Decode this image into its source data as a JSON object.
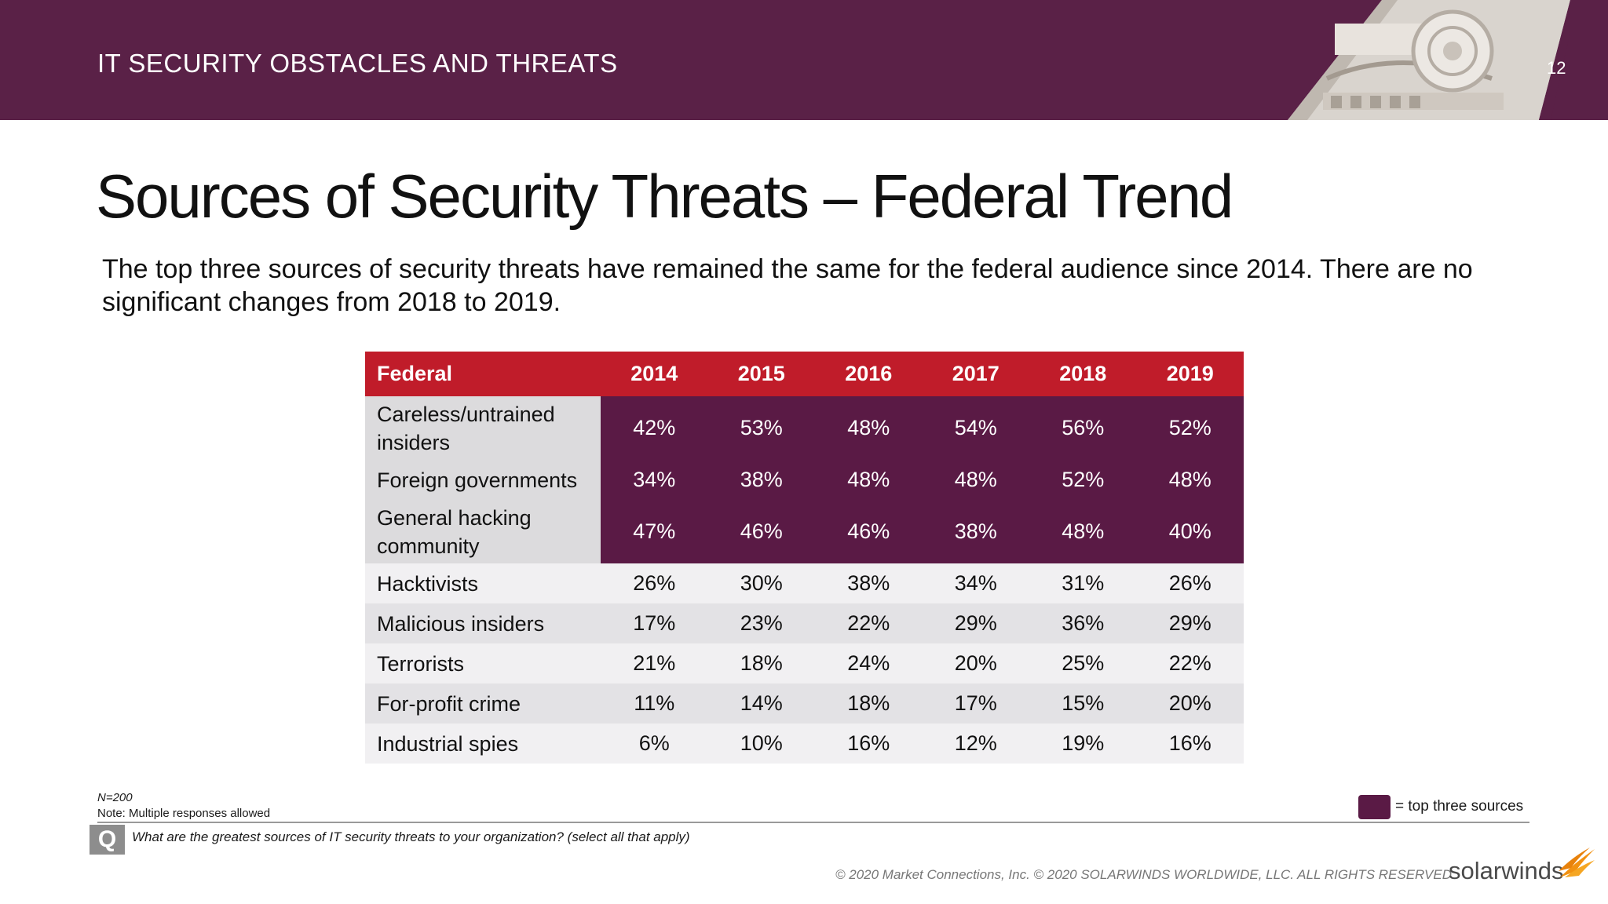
{
  "header": {
    "section_title": "IT SECURITY OBSTACLES AND THREATS",
    "page_number": "12"
  },
  "slide": {
    "title": "Sources of Security Threats – Federal Trend",
    "subtitle": "The top three sources of security threats have remained the same for the federal audience since 2014. There are no significant changes from 2018 to 2019."
  },
  "table": {
    "row_header_label": "Federal",
    "years": [
      "2014",
      "2015",
      "2016",
      "2017",
      "2018",
      "2019"
    ],
    "rows": [
      {
        "label": "Careless/untrained insiders",
        "values": [
          "42%",
          "53%",
          "48%",
          "54%",
          "56%",
          "52%"
        ],
        "top_three": true
      },
      {
        "label": "Foreign governments",
        "values": [
          "34%",
          "38%",
          "48%",
          "48%",
          "52%",
          "48%"
        ],
        "top_three": true
      },
      {
        "label": "General hacking community",
        "values": [
          "47%",
          "46%",
          "46%",
          "38%",
          "48%",
          "40%"
        ],
        "top_three": true
      },
      {
        "label": "Hacktivists",
        "values": [
          "26%",
          "30%",
          "38%",
          "34%",
          "31%",
          "26%"
        ],
        "top_three": false
      },
      {
        "label": "Malicious insiders",
        "values": [
          "17%",
          "23%",
          "22%",
          "29%",
          "36%",
          "29%"
        ],
        "top_three": false
      },
      {
        "label": "Terrorists",
        "values": [
          "21%",
          "18%",
          "24%",
          "20%",
          "25%",
          "22%"
        ],
        "top_three": false
      },
      {
        "label": "For-profit crime",
        "values": [
          "11%",
          "14%",
          "18%",
          "17%",
          "15%",
          "20%"
        ],
        "top_three": false
      },
      {
        "label": "Industrial spies",
        "values": [
          "6%",
          "10%",
          "16%",
          "12%",
          "19%",
          "16%"
        ],
        "top_three": false
      }
    ]
  },
  "legend": {
    "text": "= top three sources"
  },
  "footnotes": {
    "sample_size": "N=200",
    "note": "Note: Multiple responses allowed",
    "question_badge": "Q",
    "question": "What are the greatest sources of IT security threats to your organization? (select all that apply)"
  },
  "footer": {
    "copyright": "© 2020 Market Connections, Inc. © 2020 SOLARWINDS WORLDWIDE, LLC. ALL RIGHTS RESERVED",
    "logo_text": "solarwinds"
  },
  "colors": {
    "header_band": "#5a2147",
    "table_header": "#c01c2a",
    "top_three_fill": "#5a1a45",
    "logo_accent": "#f29111"
  },
  "icons": {
    "header_art": "classical-column-capital-image",
    "logo_mark": "solarwinds-flame-icon"
  }
}
